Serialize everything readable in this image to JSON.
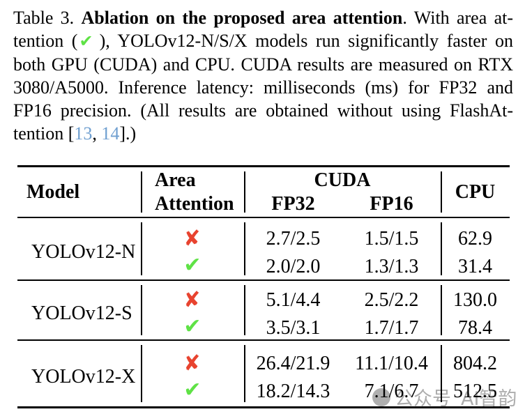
{
  "caption": {
    "lines": [
      {
        "segments": [
          {
            "text": "Table 3. "
          },
          {
            "text": "Ablation on the proposed area attention"
          },
          {
            "text": ". With area at-"
          }
        ]
      },
      {
        "segments": [
          {
            "text": "tention ("
          },
          {
            "text": "✔"
          },
          {
            "text": "), YOLOv12-N/S/X models run significantly faster on"
          }
        ]
      },
      {
        "segments": [
          {
            "text": "both GPU (CUDA) and CPU. CUDA results are measured on RTX"
          }
        ]
      },
      {
        "segments": [
          {
            "text": "3080/A5000. Inference latency: milliseconds (ms) for FP32 and"
          }
        ]
      },
      {
        "segments": [
          {
            "text": "FP16 precision. (All results are obtained without using FlashAt-"
          }
        ]
      },
      {
        "segments": [
          {
            "text": "tention ["
          },
          {
            "text": "13"
          },
          {
            "text": ", "
          },
          {
            "text": "14"
          },
          {
            "text": "].)"
          }
        ]
      }
    ]
  },
  "table": {
    "headers": {
      "model": "Model",
      "area_line1": "Area",
      "area_line2": "Attention",
      "cuda": "CUDA",
      "fp32": "FP32",
      "fp16": "FP16",
      "cpu": "CPU"
    },
    "icons": {
      "check": "✔",
      "cross": "✘"
    },
    "rows": [
      {
        "model": "YOLOv12-N",
        "variants": [
          {
            "area_attention": false,
            "fp32": "2.7/2.5",
            "fp16": "1.5/1.5",
            "cpu": "62.9"
          },
          {
            "area_attention": true,
            "fp32": "2.0/2.0",
            "fp16": "1.3/1.3",
            "cpu": "31.4"
          }
        ]
      },
      {
        "model": "YOLOv12-S",
        "variants": [
          {
            "area_attention": false,
            "fp32": "5.1/4.4",
            "fp16": "2.5/2.2",
            "cpu": "130.0"
          },
          {
            "area_attention": true,
            "fp32": "3.5/3.1",
            "fp16": "1.7/1.7",
            "cpu": "78.4"
          }
        ]
      },
      {
        "model": "YOLOv12-X",
        "variants": [
          {
            "area_attention": false,
            "fp32": "26.4/21.9",
            "fp16": "11.1/10.4",
            "cpu": "804.2"
          },
          {
            "area_attention": true,
            "fp32": "18.2/14.3",
            "fp16": "7.1/6.7",
            "cpu": "512.5"
          }
        ]
      }
    ]
  },
  "watermark": {
    "part1": "公众号",
    "part2": "AI智韵"
  },
  "colors": {
    "check_green": "#5fe246",
    "cross_red": "#e8432f",
    "ref_blue": "#6f9fd0",
    "text_black": "#000000",
    "watermark_gray": "#969696"
  }
}
